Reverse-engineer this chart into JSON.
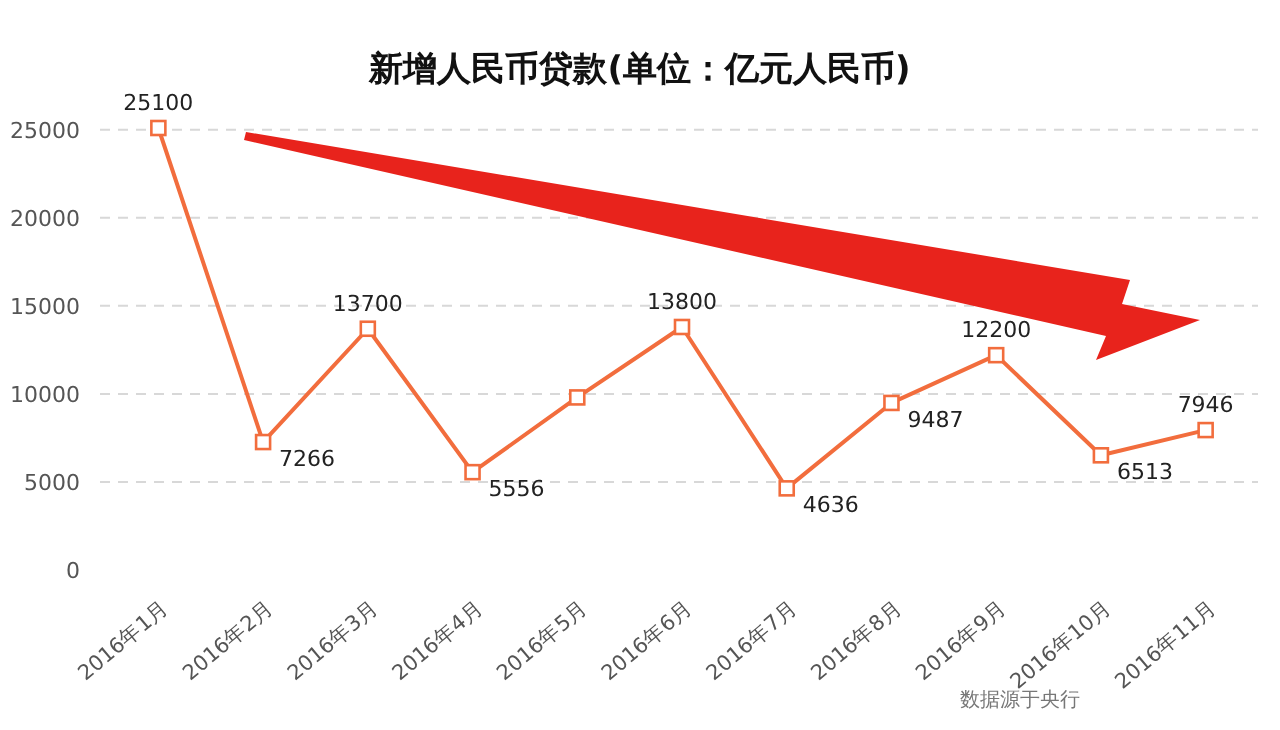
{
  "chart_data": {
    "type": "line",
    "title": "新增人民币贷款(单位：亿元人民币)",
    "categories": [
      "2016年1月",
      "2016年2月",
      "2016年3月",
      "2016年4月",
      "2016年5月",
      "2016年6月",
      "2016年7月",
      "2016年8月",
      "2016年9月",
      "2016年10月",
      "2016年11月"
    ],
    "values": [
      25100,
      7266,
      13700,
      5556,
      9800,
      13800,
      4636,
      9487,
      12200,
      6513,
      7946
    ],
    "value_labels": [
      "25100",
      "7266",
      "13700",
      "5556",
      null,
      "13800",
      "4636",
      "9487",
      "12200",
      "6513",
      "7946"
    ],
    "color": "#f26d3d",
    "marker": "square",
    "grid": "y",
    "ylim": [
      0,
      25100
    ],
    "yticks": [
      0,
      5000,
      10000,
      15000,
      20000,
      25000
    ],
    "annotations": [
      "数据源于央行"
    ]
  }
}
